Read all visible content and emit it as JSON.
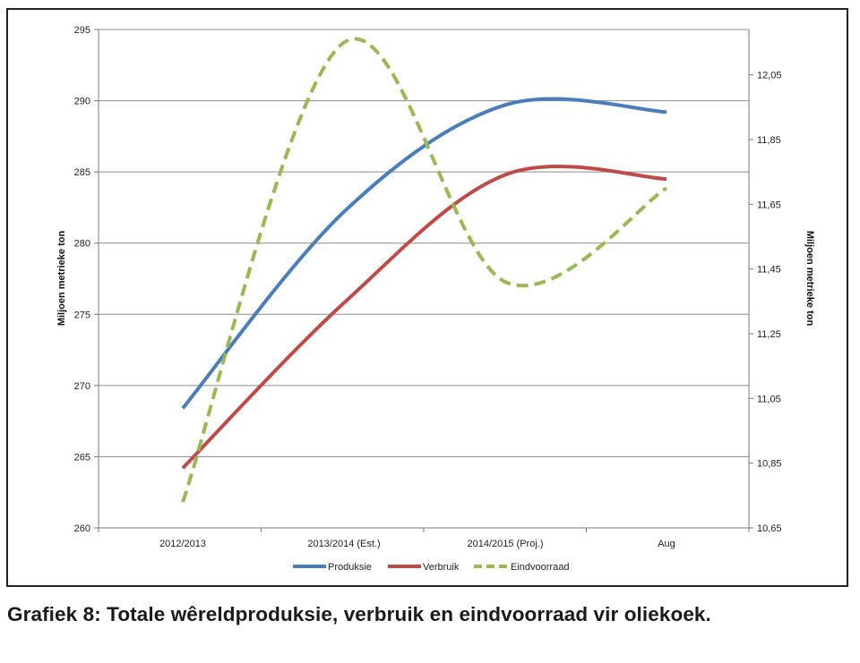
{
  "caption": "Grafiek 8: Totale wêreldproduksie, verbruik en eindvoorraad vir oliekoek.",
  "chart_data": {
    "type": "line",
    "categories": [
      "2012/2013",
      "2013/2014 (Est.)",
      "2014/2015 (Proj.)",
      "Aug"
    ],
    "ylabel": "Miljoen metrieke ton",
    "y2label": "Miljoen metrieke ton",
    "ylim": [
      260,
      295
    ],
    "yticks": [
      "260",
      "265",
      "270",
      "275",
      "280",
      "285",
      "290",
      "295"
    ],
    "y2lim": [
      10.65,
      12.19
    ],
    "y2ticks": [
      "10,65",
      "10,85",
      "11,05",
      "11,25",
      "11,45",
      "11,65",
      "11,85",
      "12,05"
    ],
    "grid": true,
    "legend_position": "bottom",
    "series": [
      {
        "name": "Produksie",
        "axis": "left",
        "values": [
          268.4,
          282.2,
          289.7,
          289.2
        ],
        "color": "#4a7ebb",
        "dash": false
      },
      {
        "name": "Verbruik",
        "axis": "left",
        "values": [
          264.2,
          275.8,
          284.8,
          284.5
        ],
        "color": "#be4b48",
        "dash": false
      },
      {
        "name": "Eindvoorraad",
        "axis": "right",
        "values": [
          10.73,
          12.15,
          11.41,
          11.7
        ],
        "color": "#98b954",
        "dash": true
      }
    ]
  }
}
